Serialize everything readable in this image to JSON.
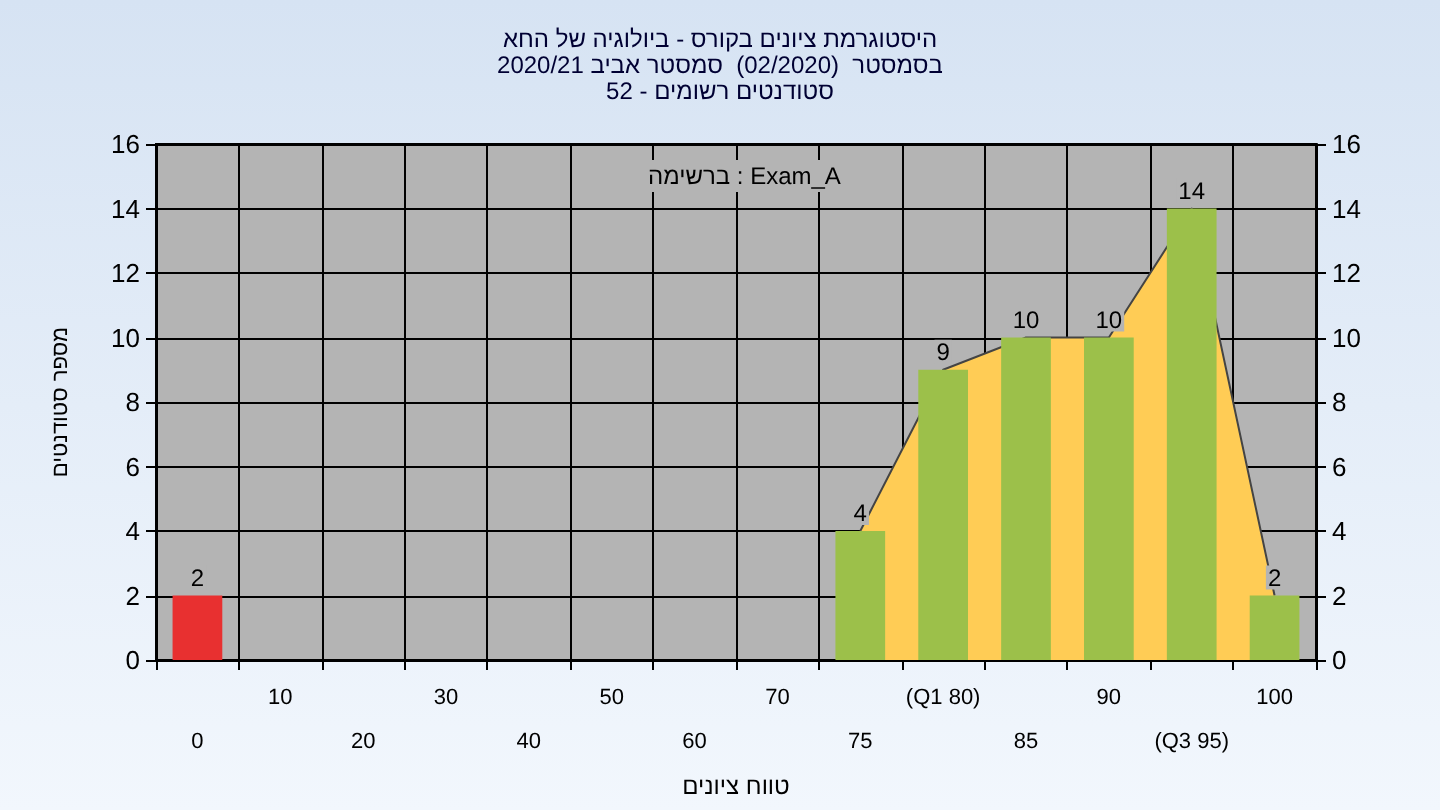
{
  "chart_data": {
    "type": "bar",
    "title": "היסטוגרמת ציונים בקורס - ביולוגיה של החא\nבסמסטר  (02/2020)  סמסטר אביב 2020/21\nסטודנטים רשומים - 52",
    "xlabel": "טווח ציונים",
    "ylabel": "מספר סטודנטים",
    "categories": [
      "0",
      "10",
      "20",
      "30",
      "40",
      "50",
      "60",
      "70",
      "75",
      "(Q1 80)",
      "85",
      "90",
      "(Q3 95)",
      "100"
    ],
    "series": [
      {
        "type": "area",
        "color": "#ffcc55",
        "values": [
          null,
          null,
          null,
          null,
          null,
          null,
          null,
          null,
          4,
          9,
          10,
          10,
          14,
          2
        ]
      },
      {
        "values": [
          2,
          0,
          0,
          0,
          0,
          0,
          0,
          0,
          4,
          9,
          10,
          10,
          14,
          2
        ],
        "colors": [
          "#e83030",
          "#9cc04a",
          "#9cc04a",
          "#9cc04a",
          "#9cc04a",
          "#9cc04a",
          "#9cc04a",
          "#9cc04a",
          "#9cc04a",
          "#9cc04a",
          "#9cc04a",
          "#9cc04a",
          "#9cc04a",
          "#9cc04a"
        ],
        "value_labels": [
          "2",
          null,
          null,
          null,
          null,
          null,
          null,
          null,
          "4",
          "9",
          "10",
          "10",
          "14",
          "2"
        ]
      }
    ],
    "annotations": [
      "ברשימה : Exam_A"
    ],
    "ylim": [
      0,
      16
    ],
    "yticks": [
      0,
      2,
      4,
      6,
      8,
      10,
      12,
      14,
      16
    ],
    "y2lim": [
      0,
      16
    ],
    "y2ticks": [
      0,
      2,
      4,
      6,
      8,
      10,
      12,
      14,
      16
    ],
    "grid": true
  }
}
